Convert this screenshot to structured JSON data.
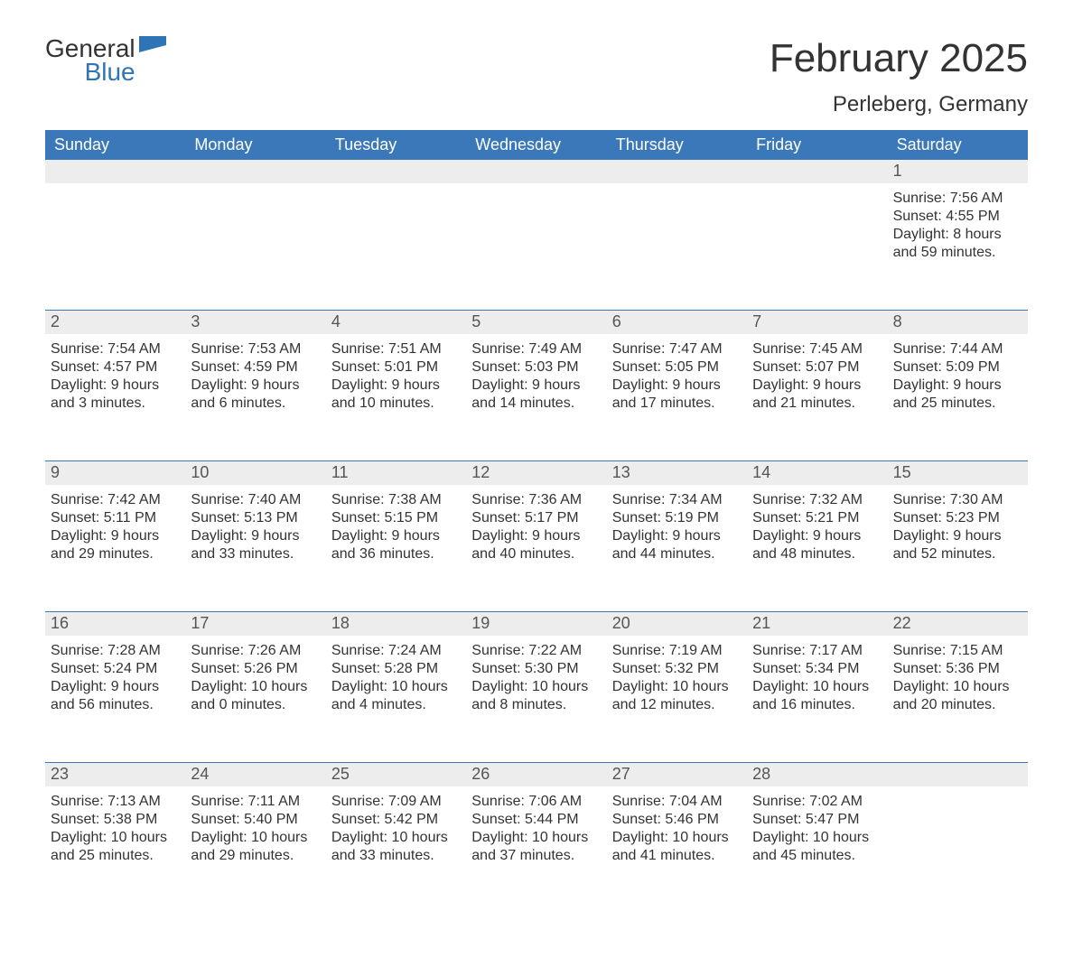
{
  "logo": {
    "word1": "General",
    "word2": "Blue",
    "flag_color": "#2f74b5"
  },
  "title": "February 2025",
  "subtitle": "Perleberg, Germany",
  "colors": {
    "header_bg": "#3a78b9",
    "header_text": "#ffffff",
    "daynum_bg": "#ededed",
    "rule": "#3a78b9",
    "text": "#333333"
  },
  "weekdays": [
    "Sunday",
    "Monday",
    "Tuesday",
    "Wednesday",
    "Thursday",
    "Friday",
    "Saturday"
  ],
  "weeks": [
    [
      {
        "num": "",
        "sunrise": "",
        "sunset": "",
        "daylight": ""
      },
      {
        "num": "",
        "sunrise": "",
        "sunset": "",
        "daylight": ""
      },
      {
        "num": "",
        "sunrise": "",
        "sunset": "",
        "daylight": ""
      },
      {
        "num": "",
        "sunrise": "",
        "sunset": "",
        "daylight": ""
      },
      {
        "num": "",
        "sunrise": "",
        "sunset": "",
        "daylight": ""
      },
      {
        "num": "",
        "sunrise": "",
        "sunset": "",
        "daylight": ""
      },
      {
        "num": "1",
        "sunrise": "Sunrise: 7:56 AM",
        "sunset": "Sunset: 4:55 PM",
        "daylight": "Daylight: 8 hours and 59 minutes."
      }
    ],
    [
      {
        "num": "2",
        "sunrise": "Sunrise: 7:54 AM",
        "sunset": "Sunset: 4:57 PM",
        "daylight": "Daylight: 9 hours and 3 minutes."
      },
      {
        "num": "3",
        "sunrise": "Sunrise: 7:53 AM",
        "sunset": "Sunset: 4:59 PM",
        "daylight": "Daylight: 9 hours and 6 minutes."
      },
      {
        "num": "4",
        "sunrise": "Sunrise: 7:51 AM",
        "sunset": "Sunset: 5:01 PM",
        "daylight": "Daylight: 9 hours and 10 minutes."
      },
      {
        "num": "5",
        "sunrise": "Sunrise: 7:49 AM",
        "sunset": "Sunset: 5:03 PM",
        "daylight": "Daylight: 9 hours and 14 minutes."
      },
      {
        "num": "6",
        "sunrise": "Sunrise: 7:47 AM",
        "sunset": "Sunset: 5:05 PM",
        "daylight": "Daylight: 9 hours and 17 minutes."
      },
      {
        "num": "7",
        "sunrise": "Sunrise: 7:45 AM",
        "sunset": "Sunset: 5:07 PM",
        "daylight": "Daylight: 9 hours and 21 minutes."
      },
      {
        "num": "8",
        "sunrise": "Sunrise: 7:44 AM",
        "sunset": "Sunset: 5:09 PM",
        "daylight": "Daylight: 9 hours and 25 minutes."
      }
    ],
    [
      {
        "num": "9",
        "sunrise": "Sunrise: 7:42 AM",
        "sunset": "Sunset: 5:11 PM",
        "daylight": "Daylight: 9 hours and 29 minutes."
      },
      {
        "num": "10",
        "sunrise": "Sunrise: 7:40 AM",
        "sunset": "Sunset: 5:13 PM",
        "daylight": "Daylight: 9 hours and 33 minutes."
      },
      {
        "num": "11",
        "sunrise": "Sunrise: 7:38 AM",
        "sunset": "Sunset: 5:15 PM",
        "daylight": "Daylight: 9 hours and 36 minutes."
      },
      {
        "num": "12",
        "sunrise": "Sunrise: 7:36 AM",
        "sunset": "Sunset: 5:17 PM",
        "daylight": "Daylight: 9 hours and 40 minutes."
      },
      {
        "num": "13",
        "sunrise": "Sunrise: 7:34 AM",
        "sunset": "Sunset: 5:19 PM",
        "daylight": "Daylight: 9 hours and 44 minutes."
      },
      {
        "num": "14",
        "sunrise": "Sunrise: 7:32 AM",
        "sunset": "Sunset: 5:21 PM",
        "daylight": "Daylight: 9 hours and 48 minutes."
      },
      {
        "num": "15",
        "sunrise": "Sunrise: 7:30 AM",
        "sunset": "Sunset: 5:23 PM",
        "daylight": "Daylight: 9 hours and 52 minutes."
      }
    ],
    [
      {
        "num": "16",
        "sunrise": "Sunrise: 7:28 AM",
        "sunset": "Sunset: 5:24 PM",
        "daylight": "Daylight: 9 hours and 56 minutes."
      },
      {
        "num": "17",
        "sunrise": "Sunrise: 7:26 AM",
        "sunset": "Sunset: 5:26 PM",
        "daylight": "Daylight: 10 hours and 0 minutes."
      },
      {
        "num": "18",
        "sunrise": "Sunrise: 7:24 AM",
        "sunset": "Sunset: 5:28 PM",
        "daylight": "Daylight: 10 hours and 4 minutes."
      },
      {
        "num": "19",
        "sunrise": "Sunrise: 7:22 AM",
        "sunset": "Sunset: 5:30 PM",
        "daylight": "Daylight: 10 hours and 8 minutes."
      },
      {
        "num": "20",
        "sunrise": "Sunrise: 7:19 AM",
        "sunset": "Sunset: 5:32 PM",
        "daylight": "Daylight: 10 hours and 12 minutes."
      },
      {
        "num": "21",
        "sunrise": "Sunrise: 7:17 AM",
        "sunset": "Sunset: 5:34 PM",
        "daylight": "Daylight: 10 hours and 16 minutes."
      },
      {
        "num": "22",
        "sunrise": "Sunrise: 7:15 AM",
        "sunset": "Sunset: 5:36 PM",
        "daylight": "Daylight: 10 hours and 20 minutes."
      }
    ],
    [
      {
        "num": "23",
        "sunrise": "Sunrise: 7:13 AM",
        "sunset": "Sunset: 5:38 PM",
        "daylight": "Daylight: 10 hours and 25 minutes."
      },
      {
        "num": "24",
        "sunrise": "Sunrise: 7:11 AM",
        "sunset": "Sunset: 5:40 PM",
        "daylight": "Daylight: 10 hours and 29 minutes."
      },
      {
        "num": "25",
        "sunrise": "Sunrise: 7:09 AM",
        "sunset": "Sunset: 5:42 PM",
        "daylight": "Daylight: 10 hours and 33 minutes."
      },
      {
        "num": "26",
        "sunrise": "Sunrise: 7:06 AM",
        "sunset": "Sunset: 5:44 PM",
        "daylight": "Daylight: 10 hours and 37 minutes."
      },
      {
        "num": "27",
        "sunrise": "Sunrise: 7:04 AM",
        "sunset": "Sunset: 5:46 PM",
        "daylight": "Daylight: 10 hours and 41 minutes."
      },
      {
        "num": "28",
        "sunrise": "Sunrise: 7:02 AM",
        "sunset": "Sunset: 5:47 PM",
        "daylight": "Daylight: 10 hours and 45 minutes."
      },
      {
        "num": "",
        "sunrise": "",
        "sunset": "",
        "daylight": ""
      }
    ]
  ]
}
